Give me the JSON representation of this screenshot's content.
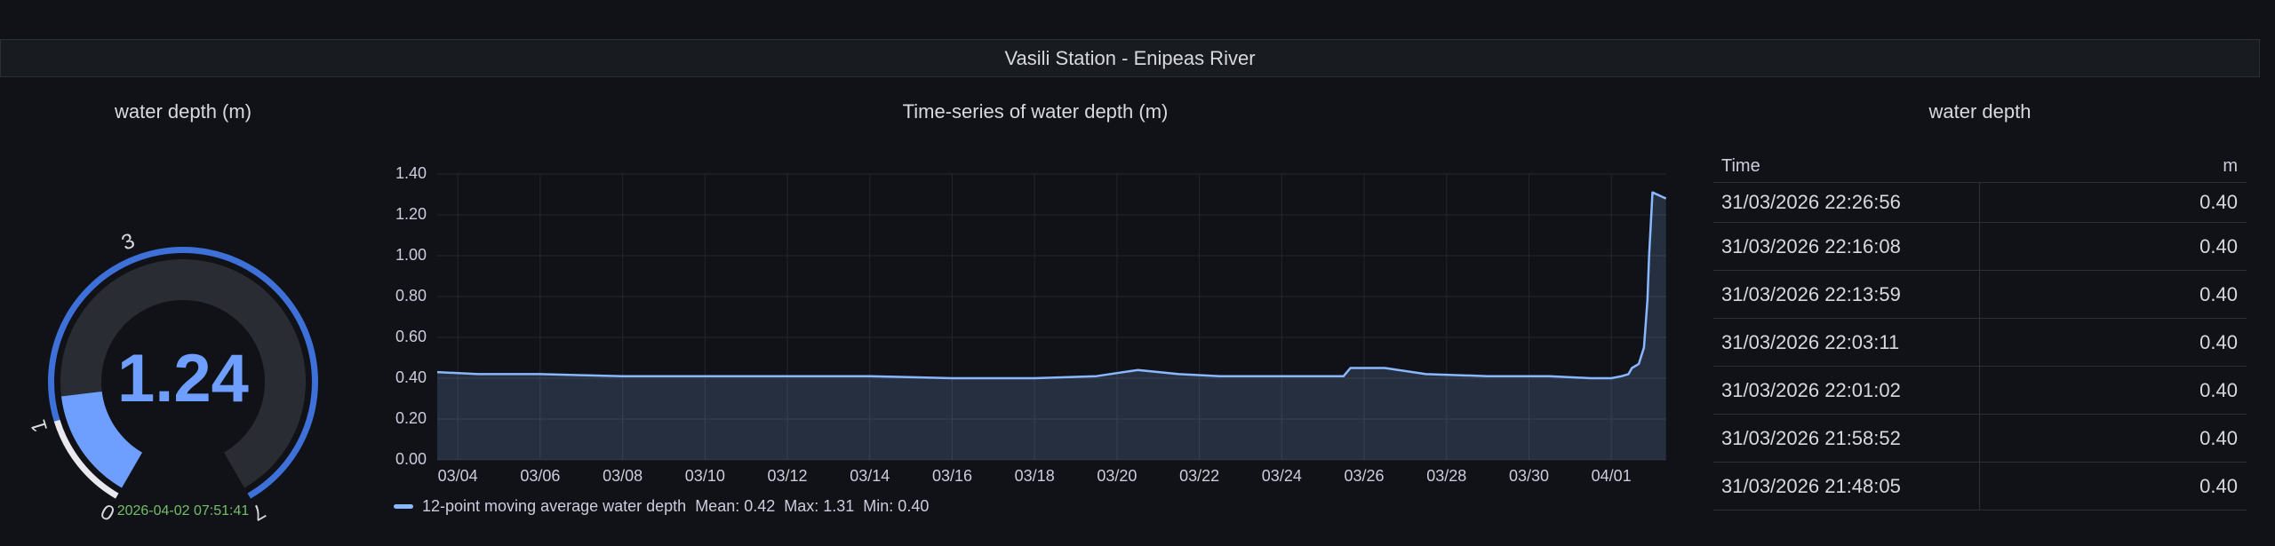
{
  "row_title": "Vasili Station - Enipeas River",
  "gauge": {
    "title": "water depth (m)",
    "value": "1.24",
    "value_numeric": 1.24,
    "tick_labels": [
      "0",
      "1",
      "3",
      "7"
    ],
    "timestamp": "2026-04-02 07:51:41",
    "colors": {
      "value": "#6e9fff",
      "arc": "#3d71d9",
      "track": "#2a2c33"
    }
  },
  "timeseries": {
    "title": "Time-series of water depth (m)",
    "legend": {
      "series_name": "12-point moving average water depth",
      "mean": "Mean: 0.42",
      "max": "Max: 1.31",
      "min": "Min: 0.40"
    }
  },
  "chart_data": {
    "type": "area",
    "title": "Time-series of water depth (m)",
    "xlabel": "",
    "ylabel": "",
    "x_tick_labels": [
      "03/04",
      "03/06",
      "03/08",
      "03/10",
      "03/12",
      "03/14",
      "03/16",
      "03/18",
      "03/20",
      "03/22",
      "03/24",
      "03/26",
      "03/28",
      "03/30",
      "04/01"
    ],
    "y_tick_labels": [
      "0.00",
      "0.20",
      "0.40",
      "0.60",
      "0.80",
      "1.00",
      "1.20",
      "1.40"
    ],
    "ylim": [
      0,
      1.4
    ],
    "xlim": [
      "2026-03-03T12:00",
      "2026-04-02T08:00"
    ],
    "grid": true,
    "series": [
      {
        "name": "12-point moving average water depth",
        "color": "#8ab8ff",
        "x": [
          "2026-03-03T12:00",
          "2026-03-04T12:00",
          "2026-03-06T00:00",
          "2026-03-08T00:00",
          "2026-03-10T00:00",
          "2026-03-12T00:00",
          "2026-03-14T00:00",
          "2026-03-16T00:00",
          "2026-03-18T00:00",
          "2026-03-19T12:00",
          "2026-03-20T12:00",
          "2026-03-21T12:00",
          "2026-03-22T12:00",
          "2026-03-24T00:00",
          "2026-03-25T12:00",
          "2026-03-25T16:00",
          "2026-03-25T20:00",
          "2026-03-26T12:00",
          "2026-03-27T12:00",
          "2026-03-29T00:00",
          "2026-03-30T12:00",
          "2026-03-31T12:00",
          "2026-04-01T00:00",
          "2026-04-01T06:00",
          "2026-04-01T10:00",
          "2026-04-01T12:00",
          "2026-04-01T16:00",
          "2026-04-01T19:00",
          "2026-04-01T21:00",
          "2026-04-01T22:00",
          "2026-04-02T00:00",
          "2026-04-02T07:51"
        ],
        "values": [
          0.43,
          0.42,
          0.42,
          0.41,
          0.41,
          0.41,
          0.41,
          0.4,
          0.4,
          0.41,
          0.44,
          0.42,
          0.41,
          0.41,
          0.41,
          0.45,
          0.45,
          0.45,
          0.42,
          0.41,
          0.41,
          0.4,
          0.4,
          0.41,
          0.42,
          0.45,
          0.47,
          0.55,
          0.78,
          1.0,
          1.31,
          1.28
        ]
      }
    ]
  },
  "table": {
    "title": "water depth",
    "columns": [
      "Time",
      "m"
    ],
    "rows": [
      [
        "31/03/2026 22:26:56",
        "0.40"
      ],
      [
        "31/03/2026 22:16:08",
        "0.40"
      ],
      [
        "31/03/2026 22:13:59",
        "0.40"
      ],
      [
        "31/03/2026 22:03:11",
        "0.40"
      ],
      [
        "31/03/2026 22:01:02",
        "0.40"
      ],
      [
        "31/03/2026 21:58:52",
        "0.40"
      ],
      [
        "31/03/2026 21:48:05",
        "0.40"
      ]
    ]
  }
}
